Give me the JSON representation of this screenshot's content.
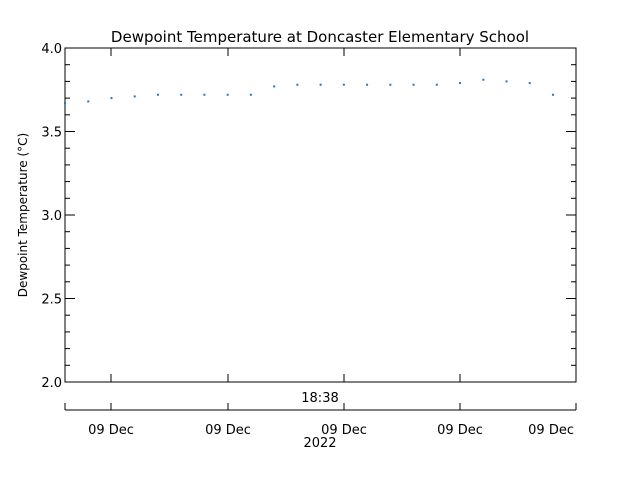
{
  "chart_data": {
    "type": "scatter",
    "title": "Dewpoint Temperature at Doncaster Elementary School",
    "ylabel": "Dewpoint Temperature (°C)",
    "ylim": [
      2.0,
      4.0
    ],
    "y_ticks": [
      "2.0",
      "2.5",
      "3.0",
      "3.5",
      "4.0"
    ],
    "x_top_label": "18:38",
    "x_tick_labels": [
      "09 Dec",
      "09 Dec",
      "09 Dec",
      "09 Dec",
      "09 Dec"
    ],
    "x_year": "2022",
    "grid": false,
    "point_color": "#1f78c8",
    "series": [
      {
        "x": [
          0,
          1,
          2,
          3,
          4,
          5,
          6,
          7,
          8,
          9,
          10,
          11,
          12,
          13,
          14,
          15,
          16,
          17,
          18,
          19,
          20,
          21
        ],
        "values": [
          3.67,
          3.68,
          3.7,
          3.71,
          3.72,
          3.72,
          3.72,
          3.72,
          3.72,
          3.77,
          3.78,
          3.78,
          3.78,
          3.78,
          3.78,
          3.78,
          3.78,
          3.79,
          3.81,
          3.8,
          3.79,
          3.72
        ]
      }
    ]
  }
}
